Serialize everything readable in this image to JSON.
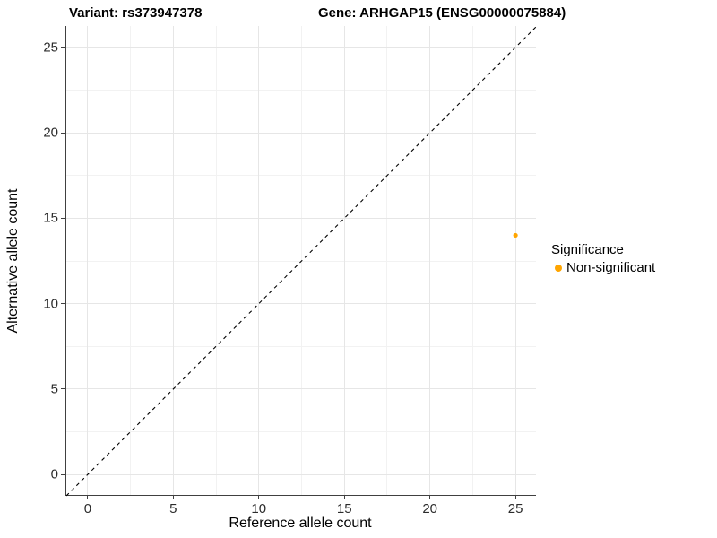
{
  "titles": {
    "variant": "Variant: rs373947378",
    "gene": "Gene: ARHGAP15 (ENSG00000075884)"
  },
  "chart_data": {
    "type": "scatter",
    "title_left": "Variant: rs373947378",
    "title_right": "Gene: ARHGAP15 (ENSG00000075884)",
    "xlabel": "Reference allele count",
    "ylabel": "Alternative allele count",
    "xlim": [
      -1.25,
      26.25
    ],
    "ylim": [
      -1.25,
      26.25
    ],
    "xticks": [
      0,
      5,
      10,
      15,
      20,
      25
    ],
    "yticks": [
      0,
      5,
      10,
      15,
      20,
      25
    ],
    "minor_xticks": [
      2.5,
      7.5,
      12.5,
      17.5,
      22.5
    ],
    "minor_yticks": [
      2.5,
      7.5,
      12.5,
      17.5,
      22.5
    ],
    "grid": true,
    "points": [
      {
        "x": 25,
        "y": 14,
        "series": "Non-significant",
        "color": "#FFA500",
        "radius": 2.6
      }
    ],
    "reference_line": {
      "type": "abline",
      "slope": 1,
      "intercept": 0,
      "style": "dashed",
      "color": "#000000",
      "dash": "4 4",
      "width": 1.1
    },
    "legend": {
      "title": "Significance",
      "position": "right",
      "items": [
        {
          "label": "Non-significant",
          "color": "#FFA500"
        }
      ]
    }
  }
}
